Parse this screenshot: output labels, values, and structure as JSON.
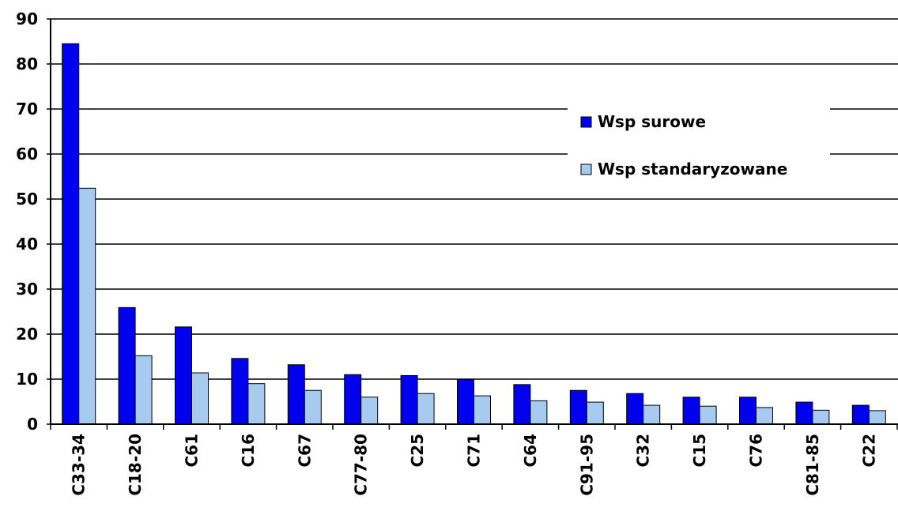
{
  "chart_data": {
    "type": "bar",
    "categories": [
      "C33-34",
      "C18-20",
      "C61",
      "C16",
      "C67",
      "C77-80",
      "C25",
      "C71",
      "C64",
      "C91-95",
      "C32",
      "C15",
      "C76",
      "C81-85",
      "C22"
    ],
    "series": [
      {
        "name": "Wsp surowe",
        "color": "#0000ee",
        "values": [
          84.5,
          25.9,
          21.6,
          14.6,
          13.2,
          11.0,
          10.8,
          9.9,
          8.8,
          7.5,
          6.8,
          6.0,
          6.0,
          4.9,
          4.2
        ]
      },
      {
        "name": "Wsp standaryzowane",
        "color": "#a6caf0",
        "values": [
          52.4,
          15.2,
          11.4,
          9.0,
          7.5,
          6.0,
          6.8,
          6.3,
          5.2,
          4.9,
          4.2,
          4.0,
          3.7,
          3.1,
          3.0
        ]
      }
    ],
    "ylim": [
      0,
      90
    ],
    "yticks": [
      0,
      10,
      20,
      30,
      40,
      50,
      60,
      70,
      80,
      90
    ],
    "grid": true,
    "legend_position": "top-right",
    "title": "",
    "xlabel": "",
    "ylabel": ""
  }
}
